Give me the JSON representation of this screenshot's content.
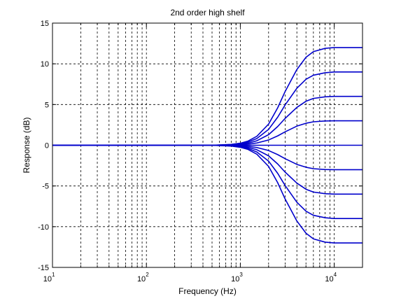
{
  "chart_data": {
    "type": "line",
    "title": "2nd order high shelf",
    "xlabel": "Frequency (Hz)",
    "ylabel": "Response (dB)",
    "xscale": "log",
    "xlim": [
      10,
      20000
    ],
    "ylim": [
      -15,
      15
    ],
    "grid": true,
    "legend": "none",
    "line_color": "#0000cc",
    "x_tick_labels": [
      {
        "base": "10",
        "exp": "1",
        "value": 10
      },
      {
        "base": "10",
        "exp": "2",
        "value": 100
      },
      {
        "base": "10",
        "exp": "3",
        "value": 1000
      },
      {
        "base": "10",
        "exp": "4",
        "value": 10000
      }
    ],
    "y_ticks": [
      15,
      10,
      5,
      0,
      -5,
      -10,
      -15
    ],
    "y_tick_labels": [
      "15",
      "10",
      "5",
      "0",
      "-5",
      "-10",
      "-15"
    ],
    "x": [
      10,
      500,
      800,
      1000,
      1200,
      1500,
      2000,
      2500,
      3000,
      4000,
      5000,
      6000,
      8000,
      10000,
      15000,
      20000
    ],
    "series": [
      {
        "values": [
          0,
          0,
          0.1,
          0.25,
          0.5,
          1.1,
          2.6,
          4.6,
          6.6,
          9.3,
          10.8,
          11.5,
          11.9,
          12.0,
          12.0,
          12.0
        ]
      },
      {
        "values": [
          0,
          0,
          0.08,
          0.19,
          0.38,
          0.83,
          1.95,
          3.45,
          4.95,
          7.0,
          8.1,
          8.6,
          8.9,
          9.0,
          9.0,
          9.0
        ]
      },
      {
        "values": [
          0,
          0,
          0.05,
          0.12,
          0.25,
          0.55,
          1.3,
          2.3,
          3.3,
          4.65,
          5.4,
          5.75,
          5.95,
          6.0,
          6.0,
          6.0
        ]
      },
      {
        "values": [
          0,
          0,
          0.03,
          0.06,
          0.12,
          0.28,
          0.65,
          1.15,
          1.65,
          2.35,
          2.7,
          2.88,
          2.98,
          3.0,
          3.0,
          3.0
        ]
      },
      {
        "values": [
          0,
          0,
          0,
          0,
          0,
          0,
          0,
          0,
          0,
          0,
          0,
          0,
          0,
          0,
          0,
          0
        ]
      },
      {
        "values": [
          0,
          0,
          -0.03,
          -0.06,
          -0.12,
          -0.28,
          -0.65,
          -1.15,
          -1.65,
          -2.35,
          -2.7,
          -2.88,
          -2.98,
          -3.0,
          -3.0,
          -3.0
        ]
      },
      {
        "values": [
          0,
          0,
          -0.05,
          -0.12,
          -0.25,
          -0.55,
          -1.3,
          -2.3,
          -3.3,
          -4.65,
          -5.4,
          -5.75,
          -5.95,
          -6.0,
          -6.0,
          -6.0
        ]
      },
      {
        "values": [
          0,
          0,
          -0.08,
          -0.19,
          -0.38,
          -0.83,
          -1.95,
          -3.45,
          -4.95,
          -7.0,
          -8.1,
          -8.6,
          -8.9,
          -9.0,
          -9.0,
          -9.0
        ]
      },
      {
        "values": [
          0,
          0,
          -0.1,
          -0.25,
          -0.5,
          -1.1,
          -2.6,
          -4.6,
          -6.6,
          -9.3,
          -10.8,
          -11.5,
          -11.9,
          -12.0,
          -12.0,
          -12.0
        ]
      }
    ]
  }
}
